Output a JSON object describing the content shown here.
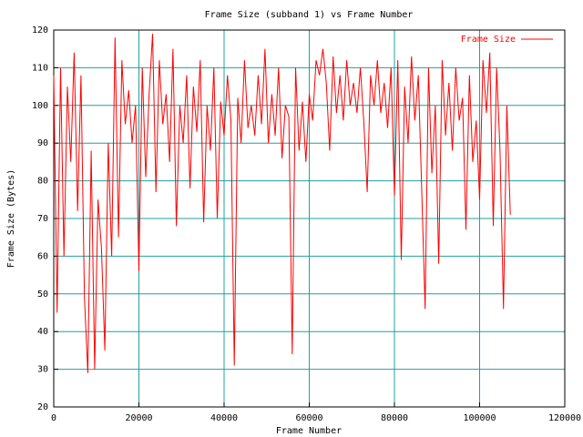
{
  "chart_data": {
    "type": "line",
    "title": "Frame Size (subband 1) vs Frame Number",
    "x_label": "Frame Number",
    "y_label": "Frame Size (Bytes)",
    "x": [
      0,
      800,
      1600,
      2400,
      3200,
      4000,
      4800,
      5600,
      6400,
      7200,
      8000,
      8800,
      9600,
      10400,
      11200,
      12000,
      12800,
      13600,
      14400,
      15200,
      16000,
      16800,
      17600,
      18400,
      19200,
      20000,
      20800,
      21600,
      22400,
      23200,
      24000,
      24800,
      25600,
      26400,
      27200,
      28000,
      28800,
      29600,
      30400,
      31200,
      32000,
      32800,
      33600,
      34400,
      35200,
      36000,
      36800,
      37600,
      38400,
      39200,
      40000,
      40800,
      41600,
      42400,
      43200,
      44000,
      44800,
      45600,
      46400,
      47200,
      48000,
      48800,
      49600,
      50400,
      51200,
      52000,
      52800,
      53600,
      54400,
      55200,
      56000,
      56800,
      57600,
      58400,
      59200,
      60000,
      60800,
      61600,
      62400,
      63200,
      64000,
      64800,
      65600,
      66400,
      67200,
      68000,
      68800,
      69600,
      70400,
      71200,
      72000,
      72800,
      73600,
      74400,
      75200,
      76000,
      76800,
      77600,
      78400,
      79200,
      80000,
      80800,
      81600,
      82400,
      83200,
      84000,
      84800,
      85600,
      86400,
      87200,
      88000,
      88800,
      89600,
      90400,
      91200,
      92000,
      92800,
      93600,
      94400,
      95200,
      96000,
      96800,
      97600,
      98400,
      99200,
      100000,
      100800,
      101600,
      102400,
      103200,
      104000,
      104800,
      105600,
      106400,
      107200
    ],
    "series": [
      {
        "name": "Frame Size",
        "color": "#ff0000",
        "values": [
          108,
          45,
          110,
          60,
          105,
          85,
          114,
          72,
          108,
          49,
          29,
          88,
          30,
          75,
          62,
          35,
          90,
          60,
          118,
          65,
          112,
          95,
          104,
          90,
          100,
          56,
          110,
          81,
          103,
          119,
          77,
          112,
          95,
          103,
          85,
          115,
          68,
          100,
          90,
          108,
          78,
          105,
          93,
          112,
          69,
          100,
          88,
          110,
          70,
          101,
          92,
          108,
          96,
          31,
          102,
          90,
          112,
          94,
          100,
          92,
          108,
          95,
          115,
          90,
          103,
          92,
          110,
          86,
          100,
          97,
          34,
          110,
          88,
          101,
          85,
          103,
          96,
          112,
          108,
          115,
          106,
          88,
          113,
          98,
          108,
          96,
          112,
          100,
          106,
          98,
          110,
          96,
          77,
          108,
          100,
          112,
          98,
          106,
          94,
          110,
          76,
          112,
          59,
          105,
          90,
          113,
          96,
          108,
          78,
          46,
          110,
          82,
          100,
          58,
          112,
          92,
          106,
          88,
          110,
          96,
          102,
          67,
          108,
          85,
          96,
          75,
          112,
          98,
          114,
          68,
          110,
          88,
          46,
          100,
          71
        ]
      }
    ],
    "xlim": [
      0,
      120000
    ],
    "xticks": [
      0,
      20000,
      40000,
      60000,
      80000,
      100000,
      120000
    ],
    "ylim": [
      20,
      120
    ],
    "yticks": [
      20,
      30,
      40,
      50,
      60,
      70,
      80,
      90,
      100,
      110,
      120
    ],
    "grid": true,
    "grid_color": "#20a0a0",
    "legend": "top-right"
  }
}
